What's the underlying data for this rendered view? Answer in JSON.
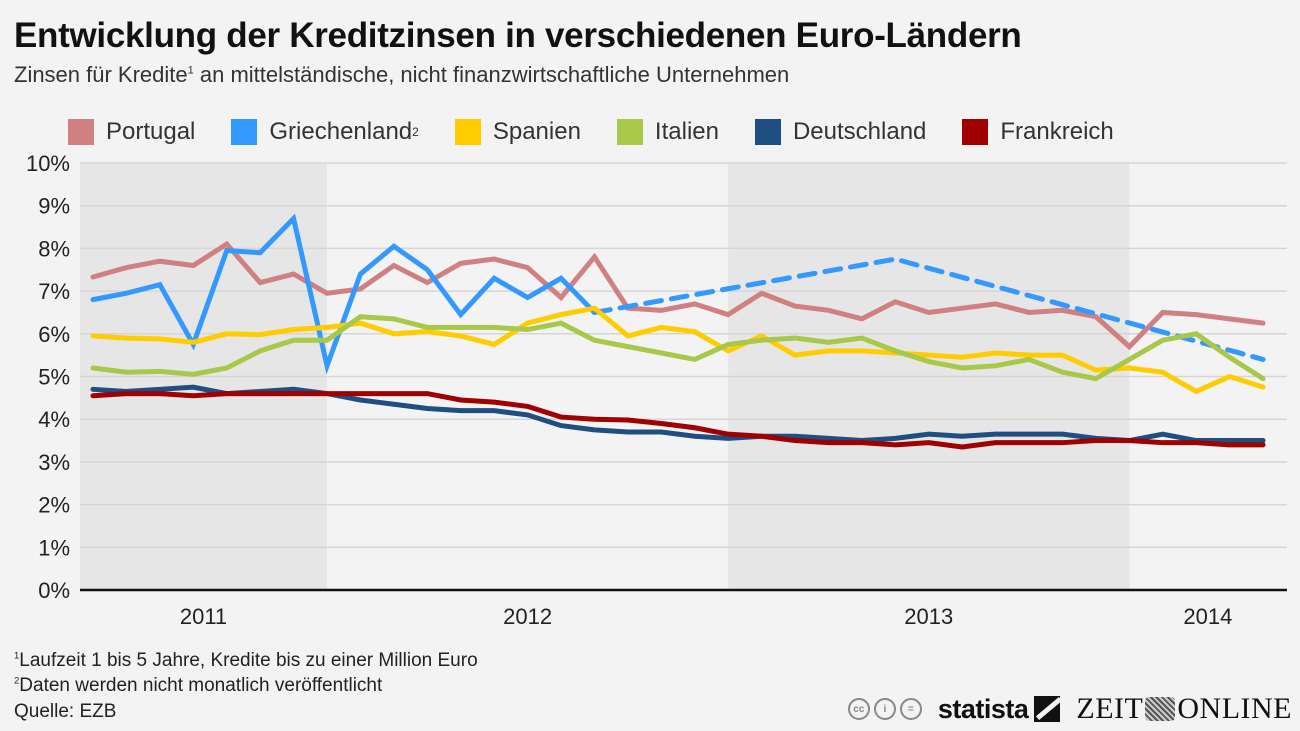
{
  "header": {
    "title": "Entwicklung der Kreditzinsen in verschiedenen Euro-Ländern",
    "subtitle_pre": "Zinsen für Kredite",
    "subtitle_sup": "1",
    "subtitle_post": " an mittelständische, nicht finanzwirtschaftliche Unternehmen"
  },
  "footer": {
    "note1_sup": "1",
    "note1": "Laufzeit 1 bis 5 Jahre, Kredite bis zu einer Million Euro",
    "note2_sup": "2",
    "note2": "Daten werden nicht monatlich veröffentlicht",
    "source": "Quelle: EZB",
    "license_icons": [
      "cc-icon",
      "by-icon",
      "nd-icon"
    ],
    "brand1": "statista",
    "brand2_left": "ZEIT",
    "brand2_right": "ONLINE"
  },
  "chart_data": {
    "type": "line",
    "title": "Entwicklung der Kreditzinsen in verschiedenen Euro-Ländern",
    "subtitle": "Zinsen für Kredite an mittelständische, nicht finanzwirtschaftliche Unternehmen",
    "xlabel": "",
    "ylabel": "",
    "ylim": [
      0,
      10
    ],
    "y_ticks": [
      "0%",
      "1%",
      "2%",
      "3%",
      "4%",
      "5%",
      "6%",
      "7%",
      "8%",
      "9%",
      "10%"
    ],
    "x_range_months": [
      0,
      35
    ],
    "x_start": "2011-06",
    "year_labels": [
      {
        "label": "2011",
        "band_start": -0.5,
        "band_end": 7,
        "shaded": true
      },
      {
        "label": "2012",
        "band_start": 7,
        "band_end": 19,
        "shaded": false
      },
      {
        "label": "2013",
        "band_start": 19,
        "band_end": 31,
        "shaded": true
      },
      {
        "label": "2014",
        "band_start": 31,
        "band_end": 35.7,
        "shaded": false
      }
    ],
    "grid": true,
    "legend_position": "top",
    "series": [
      {
        "name": "Portugal",
        "sup": "",
        "color": "#d08080",
        "dashed_from": null,
        "x": [
          0,
          1,
          2,
          3,
          4,
          5,
          6,
          7,
          8,
          9,
          10,
          11,
          12,
          13,
          14,
          15,
          16,
          17,
          18,
          19,
          20,
          21,
          22,
          23,
          24,
          25,
          26,
          27,
          28,
          29,
          30,
          31,
          32,
          33,
          34,
          35
        ],
        "values": [
          7.33,
          7.55,
          7.7,
          7.6,
          8.1,
          7.2,
          7.4,
          6.95,
          7.05,
          7.6,
          7.2,
          7.65,
          7.75,
          7.55,
          6.85,
          7.8,
          6.6,
          6.55,
          6.7,
          6.45,
          6.95,
          6.65,
          6.55,
          6.35,
          6.75,
          6.5,
          6.6,
          6.7,
          6.5,
          6.55,
          6.4,
          5.7,
          6.5,
          6.45,
          6.35,
          6.25
        ]
      },
      {
        "name": "Griechenland",
        "sup": "2",
        "color": "#3399ff",
        "dashed_from": 15,
        "x": [
          0,
          1,
          2,
          3,
          4,
          5,
          6,
          7,
          8,
          9,
          10,
          11,
          12,
          13,
          14,
          15,
          24,
          35
        ],
        "values": [
          6.8,
          6.95,
          7.15,
          5.75,
          7.95,
          7.9,
          8.7,
          5.25,
          7.4,
          8.05,
          7.5,
          6.45,
          7.3,
          6.85,
          7.3,
          6.5,
          7.75,
          5.4
        ]
      },
      {
        "name": "Spanien",
        "sup": "",
        "color": "#ffcc00",
        "dashed_from": null,
        "x": [
          0,
          1,
          2,
          3,
          4,
          5,
          6,
          7,
          8,
          9,
          10,
          11,
          12,
          13,
          14,
          15,
          16,
          17,
          18,
          19,
          20,
          21,
          22,
          23,
          24,
          25,
          26,
          27,
          28,
          29,
          30,
          31,
          32,
          33,
          34,
          35
        ],
        "values": [
          5.95,
          5.9,
          5.88,
          5.8,
          6.0,
          5.98,
          6.1,
          6.15,
          6.25,
          6.0,
          6.05,
          5.95,
          5.75,
          6.25,
          6.45,
          6.6,
          5.95,
          6.15,
          6.05,
          5.6,
          5.95,
          5.5,
          5.6,
          5.6,
          5.55,
          5.5,
          5.45,
          5.55,
          5.5,
          5.5,
          5.15,
          5.2,
          5.1,
          4.65,
          5.0,
          4.75
        ]
      },
      {
        "name": "Italien",
        "sup": "",
        "color": "#a8c84a",
        "dashed_from": null,
        "x": [
          0,
          1,
          2,
          3,
          4,
          5,
          6,
          7,
          8,
          9,
          10,
          11,
          12,
          13,
          14,
          15,
          16,
          17,
          18,
          19,
          20,
          21,
          22,
          23,
          24,
          25,
          26,
          27,
          28,
          29,
          30,
          31,
          32,
          33,
          34,
          35
        ],
        "values": [
          5.2,
          5.1,
          5.12,
          5.05,
          5.2,
          5.6,
          5.85,
          5.85,
          6.4,
          6.35,
          6.15,
          6.15,
          6.15,
          6.1,
          6.25,
          5.85,
          5.7,
          5.55,
          5.4,
          5.75,
          5.85,
          5.9,
          5.8,
          5.9,
          5.6,
          5.35,
          5.2,
          5.25,
          5.4,
          5.1,
          4.95,
          5.4,
          5.85,
          6.0,
          5.45,
          4.95
        ]
      },
      {
        "name": "Deutschland",
        "sup": "",
        "color": "#1f4e82",
        "dashed_from": null,
        "x": [
          0,
          1,
          2,
          3,
          4,
          5,
          6,
          7,
          8,
          9,
          10,
          11,
          12,
          13,
          14,
          15,
          16,
          17,
          18,
          19,
          20,
          21,
          22,
          23,
          24,
          25,
          26,
          27,
          28,
          29,
          30,
          31,
          32,
          33,
          34,
          35
        ],
        "values": [
          4.7,
          4.65,
          4.7,
          4.75,
          4.6,
          4.65,
          4.7,
          4.6,
          4.45,
          4.35,
          4.25,
          4.2,
          4.2,
          4.1,
          3.85,
          3.75,
          3.7,
          3.7,
          3.6,
          3.55,
          3.6,
          3.6,
          3.55,
          3.5,
          3.55,
          3.65,
          3.6,
          3.65,
          3.65,
          3.65,
          3.55,
          3.5,
          3.65,
          3.5,
          3.5,
          3.5
        ]
      },
      {
        "name": "Frankreich",
        "sup": "",
        "color": "#a00000",
        "dashed_from": null,
        "x": [
          0,
          1,
          2,
          3,
          4,
          5,
          6,
          7,
          8,
          9,
          10,
          11,
          12,
          13,
          14,
          15,
          16,
          17,
          18,
          19,
          20,
          21,
          22,
          23,
          24,
          25,
          26,
          27,
          28,
          29,
          30,
          31,
          32,
          33,
          34,
          35
        ],
        "values": [
          4.55,
          4.6,
          4.6,
          4.55,
          4.6,
          4.6,
          4.6,
          4.6,
          4.6,
          4.6,
          4.6,
          4.45,
          4.4,
          4.3,
          4.05,
          4.0,
          3.98,
          3.9,
          3.8,
          3.65,
          3.6,
          3.5,
          3.45,
          3.45,
          3.4,
          3.45,
          3.35,
          3.45,
          3.45,
          3.45,
          3.5,
          3.5,
          3.45,
          3.45,
          3.4,
          3.4
        ]
      }
    ]
  }
}
